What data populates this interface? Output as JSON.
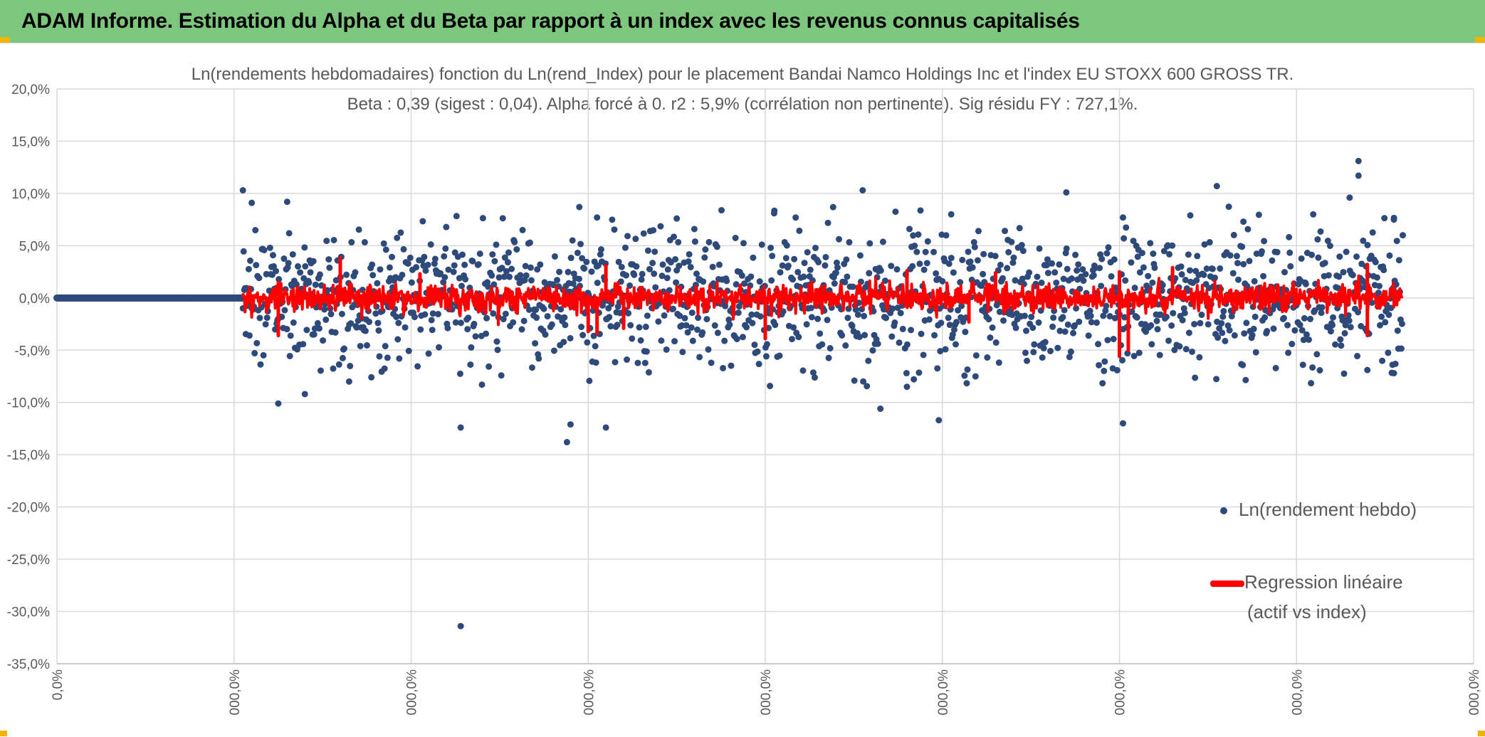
{
  "header": {
    "title": "ADAM Informe. Estimation du Alpha et du Beta par rapport à un index avec les revenus connus capitalisés"
  },
  "colors": {
    "banner": "#7dc67d",
    "scatter": "#2e4a7a",
    "regression": "#ff0000",
    "grid": "#d9d9d9",
    "text": "#595959"
  },
  "chart_data": {
    "type": "scatter",
    "title": "Ln(rendements hebdomadaires) fonction du Ln(rend_Index) pour le placement Bandai Namco Holdings Inc et l'index EU STOXX 600 GROSS TR.",
    "subtitle": "Beta : 0,39 (sigest : 0,04). Alpha forcé à 0. r2 : 5,9% (corrélation non pertinente). Sig résidu FY : 727,1%.",
    "y_ticks": [
      "20,0%",
      "15,0%",
      "10,0%",
      "5,0%",
      "0,0%",
      "-5,0%",
      "-10,0%",
      "-15,0%",
      "-20,0%",
      "-25,0%",
      "-30,0%",
      "-35,0%"
    ],
    "x_ticks": [
      "0,0%",
      "000,0%",
      "000,0%",
      "000,0%",
      "000,0%",
      "000,0%",
      "000,0%",
      "000,0%",
      "000,0%"
    ],
    "ylim": [
      -35,
      20
    ],
    "xlim": [
      0,
      8
    ],
    "grid": true,
    "legend_position": "right",
    "series": [
      {
        "name": "Ln(rendement hebdo)",
        "kind": "scatter",
        "count": 1580,
        "flat_zero_range": [
          0,
          1.05
        ],
        "y_spread_std": 3.2,
        "outliers": [
          {
            "x": 1.05,
            "y": 10.3
          },
          {
            "x": 1.1,
            "y": 9.1
          },
          {
            "x": 1.3,
            "y": 9.2
          },
          {
            "x": 1.25,
            "y": -10.1
          },
          {
            "x": 1.4,
            "y": -9.2
          },
          {
            "x": 1.65,
            "y": -8.0
          },
          {
            "x": 2.28,
            "y": -12.4
          },
          {
            "x": 2.28,
            "y": -31.4
          },
          {
            "x": 2.4,
            "y": -8.3
          },
          {
            "x": 2.88,
            "y": -13.8
          },
          {
            "x": 2.9,
            "y": -12.1
          },
          {
            "x": 2.95,
            "y": 8.7
          },
          {
            "x": 3.1,
            "y": -12.4
          },
          {
            "x": 3.05,
            "y": 7.7
          },
          {
            "x": 3.35,
            "y": 6.4
          },
          {
            "x": 3.5,
            "y": 7.6
          },
          {
            "x": 4.05,
            "y": 8.1
          },
          {
            "x": 4.55,
            "y": 10.3
          },
          {
            "x": 4.65,
            "y": -10.6
          },
          {
            "x": 4.8,
            "y": -8.5
          },
          {
            "x": 4.98,
            "y": -11.7
          },
          {
            "x": 5.05,
            "y": 8.0
          },
          {
            "x": 5.7,
            "y": 10.1
          },
          {
            "x": 6.02,
            "y": -12.0
          },
          {
            "x": 6.02,
            "y": 7.7
          },
          {
            "x": 6.4,
            "y": 7.9
          },
          {
            "x": 6.55,
            "y": 10.7
          },
          {
            "x": 6.7,
            "y": 7.3
          },
          {
            "x": 7.3,
            "y": 9.6
          },
          {
            "x": 7.35,
            "y": 13.1
          },
          {
            "x": 7.35,
            "y": 11.7
          },
          {
            "x": 7.4,
            "y": -6.9
          },
          {
            "x": 7.55,
            "y": 7.5
          },
          {
            "x": 7.55,
            "y": -7.2
          },
          {
            "x": 7.6,
            "y": 6.0
          }
        ]
      },
      {
        "name": "Regression linéaire (actif vs index)",
        "kind": "line",
        "x_range": [
          1.05,
          7.6
        ],
        "beta": 0.39,
        "spikes": [
          {
            "x": 1.25,
            "y": -3.6
          },
          {
            "x": 1.6,
            "y": 3.8
          },
          {
            "x": 2.05,
            "y": 2.3
          },
          {
            "x": 3.0,
            "y": -3.2
          },
          {
            "x": 3.1,
            "y": 3.1
          },
          {
            "x": 3.05,
            "y": -3.4
          },
          {
            "x": 3.2,
            "y": -2.9
          },
          {
            "x": 4.0,
            "y": -3.9
          },
          {
            "x": 4.8,
            "y": 2.6
          },
          {
            "x": 5.15,
            "y": -2.3
          },
          {
            "x": 5.3,
            "y": 2.4
          },
          {
            "x": 6.0,
            "y": -5.6
          },
          {
            "x": 6.05,
            "y": -5.0
          },
          {
            "x": 6.0,
            "y": 2.5
          },
          {
            "x": 6.3,
            "y": 2.9
          },
          {
            "x": 7.4,
            "y": -3.6
          },
          {
            "x": 7.4,
            "y": 3.2
          }
        ]
      }
    ],
    "legend": [
      {
        "label": "Ln(rendement hebdo)",
        "marker": "dot"
      },
      {
        "label": "Regression linéaire",
        "label2": "(actif vs index)",
        "marker": "line"
      }
    ]
  }
}
